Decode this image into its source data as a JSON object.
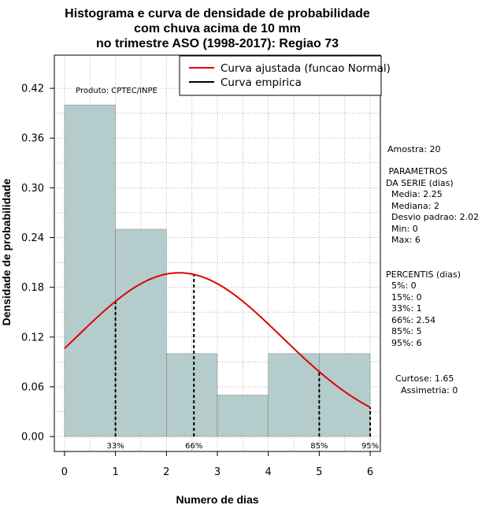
{
  "chart_data": {
    "type": "bar",
    "title_lines": [
      "Histograma e curva de densidade de probabilidade",
      "com chuva acima de 10 mm",
      "no trimestre ASO (1998-2017): Regiao 73"
    ],
    "xlabel": "Numero de dias",
    "ylabel": "Densidade de probabilidade",
    "xlim": [
      -0.2,
      6.2
    ],
    "ylim": [
      -0.018,
      0.46
    ],
    "xticks": [
      0,
      1,
      2,
      3,
      4,
      5,
      6
    ],
    "yticks": [
      0.0,
      0.06,
      0.12,
      0.18,
      0.24,
      0.3,
      0.36,
      0.42
    ],
    "ytick_labels": [
      "0.00",
      "0.06",
      "0.12",
      "0.18",
      "0.24",
      "0.30",
      "0.36",
      "0.42"
    ],
    "grid": true,
    "bins": [
      {
        "start": 0,
        "end": 1,
        "density": 0.4
      },
      {
        "start": 1,
        "end": 2,
        "density": 0.25
      },
      {
        "start": 2,
        "end": 3,
        "density": 0.1
      },
      {
        "start": 3,
        "end": 4,
        "density": 0.05
      },
      {
        "start": 4,
        "end": 5,
        "density": 0.1
      },
      {
        "start": 5,
        "end": 6,
        "density": 0.1
      }
    ],
    "normal_fit": {
      "mean": 2.25,
      "sd": 2.02,
      "x_from": 0,
      "x_to": 6
    },
    "percentile_lines": [
      {
        "label": "33%",
        "x": 1
      },
      {
        "label": "66%",
        "x": 2.54
      },
      {
        "label": "85%",
        "x": 5
      },
      {
        "label": "95%",
        "x": 6
      }
    ],
    "legend": {
      "position": "top-right",
      "entries": [
        {
          "label": "Curva ajustada (funcao Normal)",
          "color": "#e00000"
        },
        {
          "label": "Curva empirica",
          "color": "#000000"
        }
      ]
    },
    "annotation_product": "Produto: CPTEC/INPE",
    "colors": {
      "bars": "#b4cccc",
      "fit": "#e00000",
      "grid": "#b0b0b0"
    }
  },
  "stats_panel": {
    "amostra": "Amostra: 20",
    "param_header_1": " PARAMETROS",
    "param_header_2": "DA SERIE (dias)",
    "media": "  Media: 2.25",
    "mediana": "  Mediana: 2",
    "desvio": "  Desvio padrao: 2.02",
    "min": "  Min: 0",
    "max": "  Max: 6",
    "percentis_header": "PERCENTIS (dias)",
    "p5": "  5%: 0",
    "p15": "  15%: 0",
    "p33": "  33%: 1",
    "p66": "  66%: 2.54",
    "p85": "  85%: 5",
    "p95": "  95%: 6",
    "curtose": "Curtose: 1.65",
    "assimetria": "  Assimetria: 0"
  }
}
